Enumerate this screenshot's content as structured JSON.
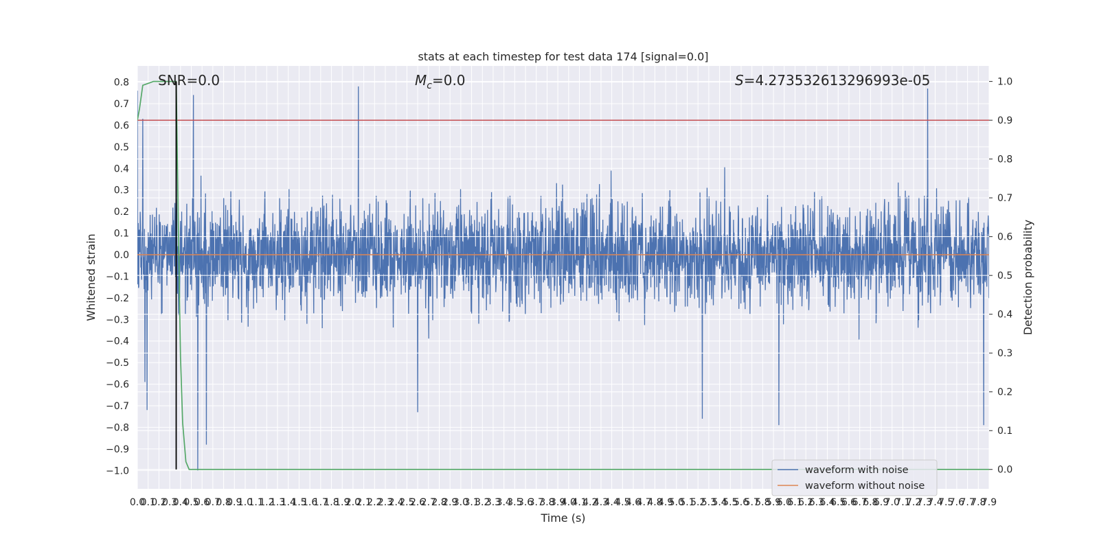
{
  "chart_data": {
    "type": "line",
    "title": "stats at each timestep for test data 174 [signal=0.0]",
    "xlabel": "Time (s)",
    "ylabel": "Whitened strain",
    "y2label": "Detection probability",
    "xlim": [
      0.0,
      7.9
    ],
    "ylim": [
      -1.085,
      0.875
    ],
    "y2lim": [
      -0.05,
      1.04
    ],
    "x_ticks": [
      "0.0",
      "0.1",
      "0.2",
      "0.3",
      "0.4",
      "0.5",
      "0.6",
      "0.7",
      "0.8",
      "0.9",
      "1.0",
      "1.1",
      "1.2",
      "1.3",
      "1.4",
      "1.5",
      "1.6",
      "1.7",
      "1.8",
      "1.9",
      "2.0",
      "2.1",
      "2.2",
      "2.3",
      "2.4",
      "2.5",
      "2.6",
      "2.7",
      "2.8",
      "2.9",
      "3.0",
      "3.1",
      "3.2",
      "3.3",
      "3.4",
      "3.5",
      "3.6",
      "3.7",
      "3.8",
      "3.9",
      "4.0",
      "4.1",
      "4.2",
      "4.3",
      "4.4",
      "4.5",
      "4.6",
      "4.7",
      "4.8",
      "4.9",
      "5.0",
      "5.1",
      "5.2",
      "5.3",
      "5.4",
      "5.5",
      "5.6",
      "5.7",
      "5.8",
      "5.9",
      "6.0",
      "6.1",
      "6.2",
      "6.3",
      "6.4",
      "6.5",
      "6.6",
      "6.7",
      "6.8",
      "6.9",
      "7.0",
      "7.1",
      "7.2",
      "7.3",
      "7.4",
      "7.5",
      "7.6",
      "7.7",
      "7.8",
      "7.9"
    ],
    "y_ticks": [
      "0.8",
      "0.7",
      "0.6",
      "0.5",
      "0.4",
      "0.3",
      "0.2",
      "0.1",
      "0.0",
      "−0.1",
      "−0.2",
      "−0.3",
      "−0.4",
      "−0.5",
      "−0.6",
      "−0.7",
      "−0.8",
      "−0.9",
      "−1.0"
    ],
    "y_tick_values": [
      0.8,
      0.7,
      0.6,
      0.5,
      0.4,
      0.3,
      0.2,
      0.1,
      0.0,
      -0.1,
      -0.2,
      -0.3,
      -0.4,
      -0.5,
      -0.6,
      -0.7,
      -0.8,
      -0.9,
      -1.0
    ],
    "y2_ticks": [
      "1.0",
      "0.9",
      "0.8",
      "0.7",
      "0.6",
      "0.5",
      "0.4",
      "0.3",
      "0.2",
      "0.1",
      "0.0"
    ],
    "y2_tick_values": [
      1.0,
      0.9,
      0.8,
      0.7,
      0.6,
      0.5,
      0.4,
      0.3,
      0.2,
      0.1,
      0.0
    ],
    "grid": true,
    "legend_position": "bottom-right",
    "annotations": {
      "snr": "SNR=0.0",
      "mc_symbol": "M",
      "mc_sub": "c",
      "mc_value": "=0.0",
      "s_symbol": "S",
      "s_value": "=4.273532613296993e-05"
    },
    "series": [
      {
        "name": "waveform with noise",
        "color": "#4c72b0",
        "axis": "left",
        "description": "dense noise oscillating roughly between -0.5 and 0.5 with occasional peaks",
        "peaks": [
          {
            "x": 0.0,
            "y": 0.76
          },
          {
            "x": 0.05,
            "y": 0.63
          },
          {
            "x": 0.07,
            "y": -0.59
          },
          {
            "x": 0.09,
            "y": -0.72
          },
          {
            "x": 0.36,
            "y": 0.58
          },
          {
            "x": 0.52,
            "y": 0.74
          },
          {
            "x": 0.56,
            "y": -1.0
          },
          {
            "x": 0.64,
            "y": -0.88
          },
          {
            "x": 2.05,
            "y": 0.78
          },
          {
            "x": 2.6,
            "y": -0.73
          },
          {
            "x": 5.24,
            "y": -0.76
          },
          {
            "x": 5.95,
            "y": -0.79
          },
          {
            "x": 7.33,
            "y": 0.77
          },
          {
            "x": 7.85,
            "y": -0.79
          }
        ]
      },
      {
        "name": "waveform without noise",
        "color": "#dd8452",
        "axis": "left",
        "x": [
          0.0,
          7.9
        ],
        "y": [
          0.0,
          0.0
        ]
      },
      {
        "name": "detection probability",
        "color": "#55a868",
        "axis": "right",
        "x": [
          0.0,
          0.02,
          0.05,
          0.1,
          0.15,
          0.2,
          0.25,
          0.3,
          0.35,
          0.36,
          0.38,
          0.4,
          0.42,
          0.45,
          0.48,
          7.9
        ],
        "y": [
          0.9,
          0.93,
          0.99,
          0.995,
          1.0,
          1.0,
          1.0,
          1.0,
          1.0,
          1.0,
          0.63,
          0.29,
          0.12,
          0.02,
          0.0,
          0.0
        ]
      },
      {
        "name": "threshold",
        "color": "#c44e52",
        "axis": "right",
        "x": [
          0.0,
          7.9
        ],
        "y": [
          0.9,
          0.9
        ]
      },
      {
        "name": "marker",
        "color": "#000000",
        "axis": "right",
        "x": [
          0.36,
          0.36
        ],
        "y": [
          0.0,
          1.0
        ]
      }
    ]
  }
}
